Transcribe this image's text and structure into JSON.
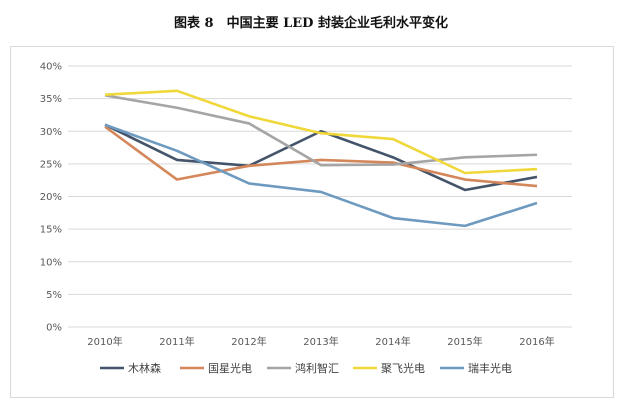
{
  "chart_data": {
    "type": "line",
    "title": "图表 8　中国主要 LED 封装企业毛利水平变化",
    "categories": [
      "2010年",
      "2011年",
      "2012年",
      "2013年",
      "2014年",
      "2015年",
      "2016年"
    ],
    "yticks": [
      "0%",
      "5%",
      "10%",
      "15%",
      "20%",
      "25%",
      "30%",
      "35%",
      "40%"
    ],
    "ylim": [
      0,
      40
    ],
    "grid": true,
    "legend": "bottom",
    "series": [
      {
        "name": "木林森",
        "color": "#44546a",
        "values": [
          31.0,
          25.6,
          24.7,
          30.0,
          26.0,
          21.0,
          23.0
        ]
      },
      {
        "name": "国星光电",
        "color": "#d4875a",
        "values": [
          30.7,
          22.6,
          24.7,
          25.6,
          25.2,
          22.6,
          21.6
        ]
      },
      {
        "name": "鸿利智汇",
        "color": "#a5a5a5",
        "values": [
          35.5,
          33.6,
          31.2,
          24.8,
          24.9,
          26.0,
          26.4
        ]
      },
      {
        "name": "聚飞光电",
        "color": "#f0d83a",
        "values": [
          35.6,
          36.2,
          32.3,
          29.7,
          28.8,
          23.6,
          24.2
        ]
      },
      {
        "name": "瑞丰光电",
        "color": "#6e9ac0",
        "values": [
          31.0,
          27.0,
          22.0,
          20.7,
          16.7,
          15.5,
          19.0
        ]
      }
    ]
  }
}
